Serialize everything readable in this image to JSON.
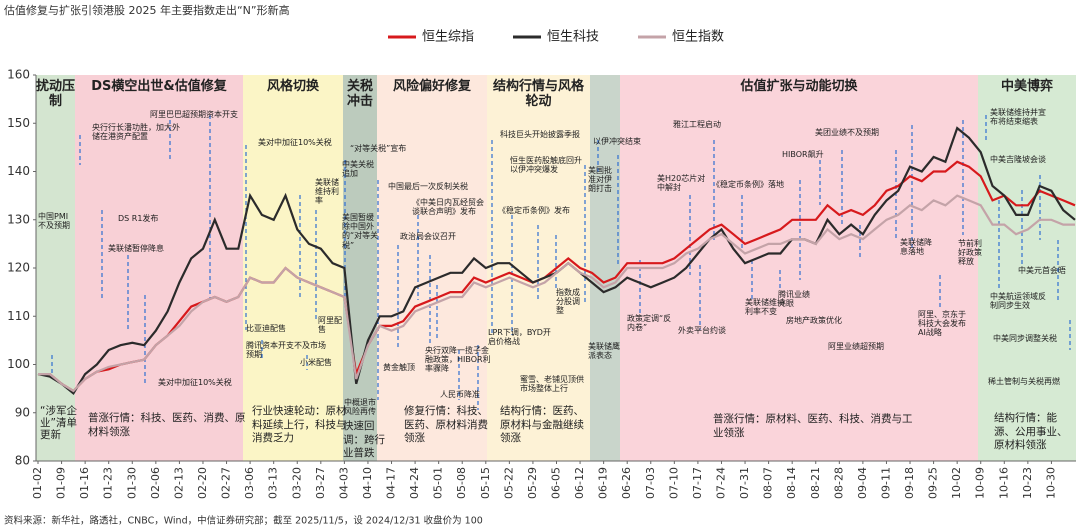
{
  "chart_data": {
    "type": "line",
    "title": "估值修复与扩张引领港股 2025 年主要指数走出“N”形新高",
    "source": "资料来源：新华社，路透社，CNBC，Wind，中信证券研究部；截至 2025/11/5，设 2024/12/31 收盘价为 100",
    "categories": [
      "01-02",
      null,
      "01-09",
      null,
      "01-16",
      null,
      "01-23",
      null,
      "01-30",
      null,
      "02-06",
      null,
      "02-13",
      null,
      "02-20",
      null,
      "02-27",
      null,
      "03-06",
      null,
      "03-13",
      null,
      "03-20",
      null,
      "03-27",
      null,
      "04-03",
      null,
      "04-10",
      null,
      "04-17",
      null,
      "04-24",
      null,
      "05-01",
      null,
      "05-08",
      null,
      "05-15",
      null,
      "05-22",
      null,
      "05-29",
      null,
      "06-05",
      null,
      "06-12",
      null,
      "06-19",
      null,
      "06-26",
      null,
      "07-03",
      null,
      "07-10",
      null,
      "07-17",
      null,
      "07-24",
      null,
      "07-31",
      null,
      "08-07",
      null,
      "08-14",
      null,
      "08-21",
      null,
      "08-28",
      null,
      "09-04",
      null,
      "09-11",
      null,
      "09-18",
      null,
      "09-25",
      null,
      "10-02",
      null,
      "10-09",
      null,
      "10-16",
      null,
      "10-23",
      null,
      "10-30",
      null,
      null
    ],
    "series": [
      {
        "name": "恒生综指",
        "color": "#d7191c",
        "values": [
          98,
          98,
          96,
          94.5,
          97,
          98.5,
          99,
          100,
          100.5,
          101,
          104,
          106,
          109,
          112,
          113,
          114,
          113,
          114,
          118,
          117,
          117,
          120,
          118,
          117,
          116,
          115,
          114,
          98,
          104,
          108,
          108,
          109,
          112,
          113,
          114,
          115,
          115,
          118,
          117,
          118,
          119,
          118,
          117,
          118,
          120,
          122,
          120,
          119,
          117,
          118,
          121,
          121,
          121,
          121,
          122,
          124,
          126,
          128,
          129,
          127,
          125,
          126,
          127,
          128,
          130,
          130,
          130,
          133,
          131,
          132,
          131,
          133,
          136,
          137,
          139,
          138,
          140,
          140,
          142,
          141,
          139,
          134,
          135,
          133,
          133,
          136,
          135,
          134,
          133
        ]
      },
      {
        "name": "恒生科技",
        "color": "#2b2b2b",
        "values": [
          98,
          97.5,
          96,
          94,
          98,
          100,
          103,
          104,
          104.5,
          104,
          107,
          111,
          117,
          122,
          124,
          130,
          124,
          124,
          135,
          131,
          130,
          135,
          128,
          125,
          124,
          121,
          120,
          96,
          105,
          110,
          110,
          111,
          116,
          117,
          118,
          119,
          119,
          122,
          120,
          121,
          121,
          119,
          117,
          118,
          119,
          121,
          119,
          117,
          115,
          116,
          118,
          117,
          116,
          117,
          118,
          120,
          123,
          126,
          128,
          124,
          121,
          122,
          123,
          123,
          126,
          126,
          125,
          130,
          127,
          129,
          127,
          131,
          134,
          136,
          141,
          140,
          143,
          142,
          149,
          147,
          144,
          137,
          135,
          131,
          131,
          137,
          136,
          132,
          130
        ]
      },
      {
        "name": "恒生指数",
        "color": "#c4a3a8",
        "values": [
          98,
          98,
          96,
          94.5,
          97,
          98.5,
          99.5,
          100,
          100.5,
          101,
          104,
          106,
          108,
          111,
          113,
          114,
          113,
          114,
          118,
          117,
          117,
          120,
          118,
          117,
          116,
          115,
          114,
          97,
          104,
          108,
          107,
          108,
          111,
          112,
          113,
          114,
          114,
          117,
          116,
          117,
          118,
          117,
          116,
          117,
          119,
          121,
          119,
          118,
          116,
          117,
          120,
          120,
          120,
          120,
          121,
          123,
          124,
          126,
          127,
          125,
          123,
          124,
          125,
          125,
          126,
          126,
          125,
          128,
          126,
          127,
          126,
          128,
          130,
          131,
          133,
          132,
          134,
          133,
          135,
          134,
          133,
          129,
          129,
          127,
          128,
          130,
          130,
          129,
          129
        ]
      }
    ],
    "ylim": [
      80,
      160
    ],
    "yticks": [
      80,
      90,
      100,
      110,
      120,
      130,
      140,
      150,
      160
    ],
    "phases": [
      "扰动压制",
      "DS横空出世&估值修复",
      "风格切换",
      "关税冲击",
      "风险偏好修复",
      "结构行情与风格轮动",
      "估值扩张与动能切换",
      "中美博弈"
    ],
    "phase_notes": [
      "普涨行情：科技、医药、消费、原材料领涨",
      "行业快速轮动：原材料延续上行，科技与消费乏力",
      "快速回调：跨行业普跌",
      "修复行情：科技、医药、原材料消费领涨",
      "结构行情：医药、原材料与金融继续领涨",
      "普涨行情：原材料、医药、科技、消费与工业领涨",
      "结构行情：能源、公用事业、原材料领涨"
    ],
    "annotations": [
      "中国PMI不及预期",
      "央行行长潘功胜，加大外储在港资产配置",
      "阿里巴巴超预期资本开支",
      "DS R1发布",
      "美联储暂停降息",
      "美对中加征10%关税",
      "“涉军企业”清单更新",
      "美对中加征10%关税",
      "美联储维持利率",
      "比亚迪配售",
      "腾讯资本开支不及市场预期",
      "小米配售",
      "阿里配售",
      "“对等关税”宣布",
      "中美关税追加",
      "美国暂缓除中国外的“对等关税”",
      "中概退市风险再传",
      "中国最后一次反制关税",
      "《中美日内瓦经贸会谈联合声明》发布",
      "政治局会议召开",
      "黄金触顶",
      "央行双降一揽子金融政策，HIBOR利率骤降",
      "人民币降准",
      "科技巨头开始披露季报",
      "恒生医药股触底回升以伊冲突爆发",
      "《稳定币条例》发布",
      "LPR下调，BYD开启价格战",
      "蜜雪、老铺见顶供市场整体上行",
      "指数成分股调整",
      "以伊冲突结束",
      "美国批准对伊朗打击",
      "美联储鹰派表态",
      "政策定调“反内卷”",
      "雅江工程启动",
      "美H20芯片对中解封",
      "外卖平台约谈",
      "《稳定币条例》落地",
      "美联储维持利率不变",
      "腾讯业绩亮眼",
      "房地产政策优化",
      "HIBOR飙升",
      "美团业绩不及预期",
      "阿里业绩超预期",
      "美联储降息落地",
      "阿里、京东于科技大会发布AI战略",
      "节前利好政策释放",
      "美联储维持并宣布将结束缩表",
      "中美吉隆坡会谈",
      "中美元首会晤",
      "中美航运领域反制同步生效",
      "中美同步调整关税",
      "稀土管制与关税再燃"
    ]
  }
}
